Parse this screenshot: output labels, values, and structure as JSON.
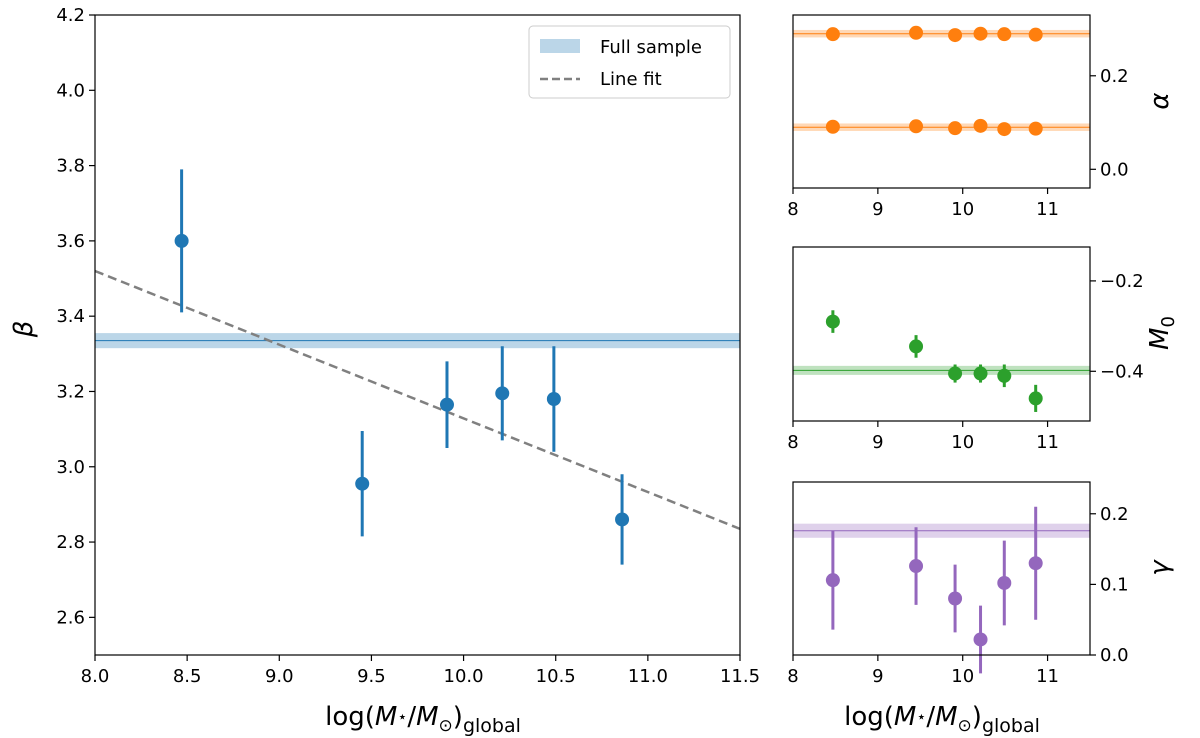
{
  "chart_data": [
    {
      "id": "beta",
      "type": "scatter",
      "xlabel": "log(M⋆/M⊙)global",
      "ylabel": "β",
      "xlim": [
        8.0,
        11.5
      ],
      "ylim": [
        2.5,
        4.2
      ],
      "xticks": [
        "8.0",
        "8.5",
        "9.0",
        "9.5",
        "10.0",
        "10.5",
        "11.0",
        "11.5"
      ],
      "yticks": [
        "2.6",
        "2.8",
        "3.0",
        "3.2",
        "3.4",
        "3.6",
        "3.8",
        "4.0",
        "4.2"
      ],
      "color": "#1f77b4",
      "points": [
        {
          "x": 8.47,
          "y": 3.6,
          "err": 0.19
        },
        {
          "x": 9.45,
          "y": 2.955,
          "err": 0.14
        },
        {
          "x": 9.91,
          "y": 3.165,
          "err": 0.115
        },
        {
          "x": 10.21,
          "y": 3.195,
          "err": 0.125
        },
        {
          "x": 10.49,
          "y": 3.18,
          "err": 0.14
        },
        {
          "x": 10.86,
          "y": 2.86,
          "err": 0.12
        }
      ],
      "band": {
        "center": 3.335,
        "halfwidth": 0.02,
        "color": "#1f77b4"
      },
      "fit_line": {
        "x": [
          8.0,
          11.5
        ],
        "y": [
          3.52,
          2.835
        ],
        "color": "#808080"
      },
      "legend": {
        "position": "top-right",
        "entries": [
          {
            "label": "Full sample",
            "style": "band"
          },
          {
            "label": "Line fit",
            "style": "dashed"
          }
        ]
      }
    },
    {
      "id": "alpha",
      "type": "scatter",
      "xlabel": "",
      "ylabel": "α",
      "xlim": [
        8,
        11.5
      ],
      "ylim": [
        -0.04,
        0.33
      ],
      "xticks": [
        "8",
        "9",
        "10",
        "11"
      ],
      "yticks": [
        "0.0",
        "0.2"
      ],
      "yaxis_side": "right",
      "color": "#ff7f0e",
      "series": [
        {
          "name": "upper",
          "band": {
            "center": 0.29,
            "halfwidth": 0.008
          },
          "points": [
            {
              "x": 8.47,
              "y": 0.289
            },
            {
              "x": 9.45,
              "y": 0.292
            },
            {
              "x": 9.91,
              "y": 0.287
            },
            {
              "x": 10.21,
              "y": 0.29
            },
            {
              "x": 10.49,
              "y": 0.289
            },
            {
              "x": 10.86,
              "y": 0.288
            }
          ]
        },
        {
          "name": "lower",
          "band": {
            "center": 0.09,
            "halfwidth": 0.008
          },
          "points": [
            {
              "x": 8.47,
              "y": 0.091
            },
            {
              "x": 9.45,
              "y": 0.092
            },
            {
              "x": 9.91,
              "y": 0.088
            },
            {
              "x": 10.21,
              "y": 0.093
            },
            {
              "x": 10.49,
              "y": 0.086
            },
            {
              "x": 10.86,
              "y": 0.087
            }
          ]
        }
      ]
    },
    {
      "id": "M0",
      "type": "scatter",
      "xlabel": "",
      "ylabel": "M0",
      "xlim": [
        8,
        11.5
      ],
      "ylim": [
        -0.51,
        -0.125
      ],
      "xticks": [
        "8",
        "9",
        "10",
        "11"
      ],
      "yticks": [
        "−0.4",
        "−0.2"
      ],
      "yticks_values": [
        -0.4,
        -0.2
      ],
      "yaxis_side": "right",
      "color": "#2ca02c",
      "points": [
        {
          "x": 8.47,
          "y": -0.29,
          "err": 0.025
        },
        {
          "x": 9.45,
          "y": -0.345,
          "err": 0.025
        },
        {
          "x": 9.91,
          "y": -0.405,
          "err": 0.02
        },
        {
          "x": 10.21,
          "y": -0.405,
          "err": 0.02
        },
        {
          "x": 10.49,
          "y": -0.41,
          "err": 0.025
        },
        {
          "x": 10.86,
          "y": -0.46,
          "err": 0.03
        }
      ],
      "band": {
        "center": -0.398,
        "halfwidth": 0.01
      }
    },
    {
      "id": "gamma",
      "type": "scatter",
      "xlabel": "log(M⋆/M⊙)global",
      "ylabel": "γ",
      "xlim": [
        8,
        11.5
      ],
      "ylim": [
        0.0,
        0.245
      ],
      "xticks": [
        "8",
        "9",
        "10",
        "11"
      ],
      "yticks": [
        "0.0",
        "0.1",
        "0.2"
      ],
      "yticks_values": [
        0.0,
        0.1,
        0.2
      ],
      "yaxis_side": "right",
      "color": "#9467bd",
      "points": [
        {
          "x": 8.47,
          "y": 0.106,
          "err": 0.07
        },
        {
          "x": 9.45,
          "y": 0.126,
          "err": 0.055
        },
        {
          "x": 9.91,
          "y": 0.08,
          "err": 0.048
        },
        {
          "x": 10.21,
          "y": 0.022,
          "err": 0.048
        },
        {
          "x": 10.49,
          "y": 0.102,
          "err": 0.06
        },
        {
          "x": 10.86,
          "y": 0.13,
          "err": 0.08
        }
      ],
      "band": {
        "center": 0.176,
        "halfwidth": 0.01
      }
    }
  ],
  "labels": {
    "main_ylabel": "β",
    "xlabel_main": "log(",
    "xlabel_M1": "M",
    "xlabel_star": "⋆",
    "xlabel_slash": "/",
    "xlabel_M2": "M",
    "xlabel_sun": "⊙",
    "xlabel_close": ")",
    "xlabel_sub": "global",
    "alpha_label": "α",
    "m0_label": "M",
    "m0_sub": "0",
    "gamma_label": "γ",
    "legend_full": "Full sample",
    "legend_fit": "Line fit"
  }
}
